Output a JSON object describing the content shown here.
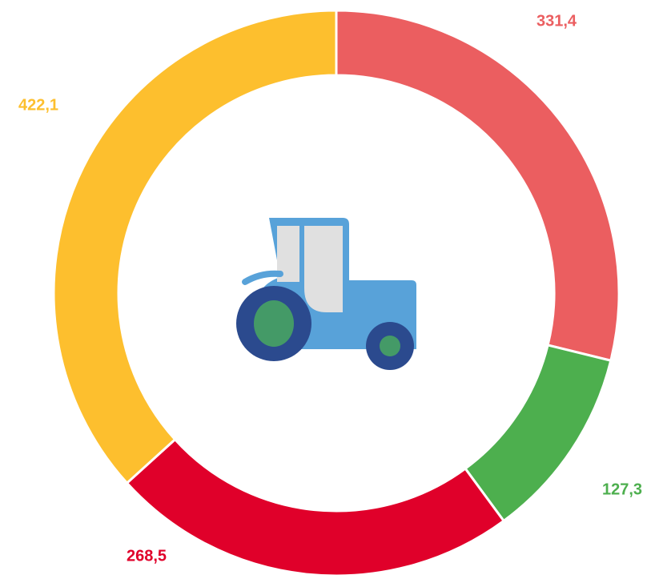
{
  "chart_data": {
    "type": "donut",
    "values": [
      331.4,
      127.3,
      268.5,
      422.1
    ],
    "value_labels": [
      "331,4",
      "127,3",
      "268,5",
      "422,1"
    ],
    "colors": [
      "#eb5e60",
      "#4daf4e",
      "#e0002a",
      "#fdbf2e"
    ]
  }
}
